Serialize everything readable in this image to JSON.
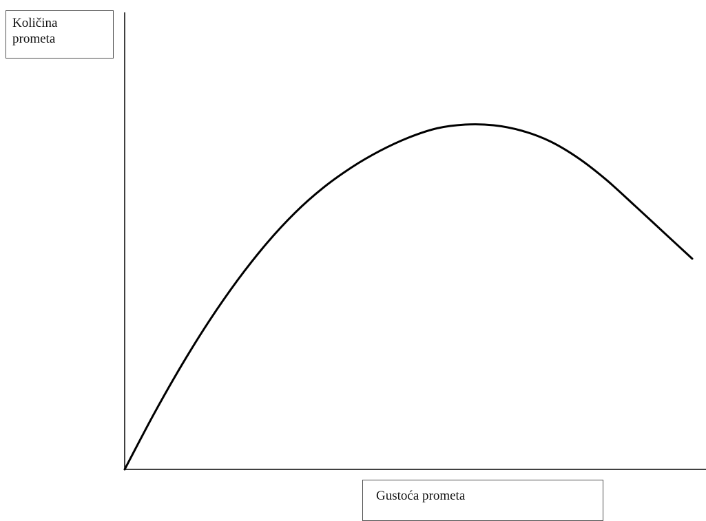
{
  "chart_data": {
    "type": "line",
    "title": "",
    "ylabel_lines": [
      "Količina",
      "prometa"
    ],
    "xlabel": "Gustoća prometa",
    "xlim": [
      0,
      1
    ],
    "ylim": [
      0,
      1
    ],
    "grid": false,
    "legend": "none",
    "line_color": "#000000",
    "axis_color": "#000000",
    "series": [
      {
        "x": [
          0,
          0.05,
          0.1,
          0.15,
          0.2,
          0.25,
          0.3,
          0.35,
          0.4,
          0.45,
          0.5,
          0.55,
          0.6,
          0.65,
          0.7,
          0.75,
          0.8,
          0.85,
          0.9,
          0.95,
          1.0
        ],
        "values": [
          0,
          0.156,
          0.301,
          0.433,
          0.551,
          0.655,
          0.744,
          0.817,
          0.876,
          0.924,
          0.962,
          0.989,
          1.0,
          0.998,
          0.982,
          0.951,
          0.902,
          0.838,
          0.763,
          0.687,
          0.611
        ]
      }
    ]
  }
}
